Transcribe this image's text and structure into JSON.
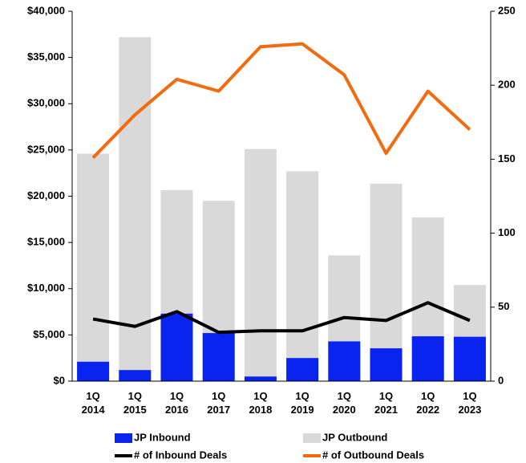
{
  "chart_data": {
    "type": "combo",
    "categories": [
      "1Q 2014",
      "1Q 2015",
      "1Q 2016",
      "1Q 2017",
      "1Q 2018",
      "1Q 2019",
      "1Q 2020",
      "1Q 2021",
      "1Q 2022",
      "1Q 2023"
    ],
    "series": [
      {
        "name": "JP Outbound",
        "type": "bar",
        "color": "#d9d9d9",
        "values": [
          24600,
          37200,
          20650,
          19500,
          25100,
          22700,
          13600,
          21350,
          17700,
          10400
        ]
      },
      {
        "name": "JP Inbound",
        "type": "bar",
        "color": "#0a24f0",
        "values": [
          2100,
          1200,
          7300,
          5200,
          500,
          2500,
          4300,
          3550,
          4850,
          4800
        ]
      },
      {
        "name": "# of Inbound Deals",
        "type": "line",
        "axis": "y2",
        "color": "#000000",
        "values": [
          42,
          37,
          47,
          33,
          34,
          34,
          43,
          41,
          53,
          41
        ]
      },
      {
        "name": "# of Outbound Deals",
        "type": "line",
        "axis": "y2",
        "color": "#f26b0f",
        "values": [
          151,
          180,
          204,
          196,
          226,
          228,
          207,
          154,
          196,
          170
        ]
      }
    ],
    "ylim": [
      0,
      40000
    ],
    "yticks": [
      {
        "value": 0,
        "label": "$0"
      },
      {
        "value": 5000,
        "label": "$5,000"
      },
      {
        "value": 10000,
        "label": "$10,000"
      },
      {
        "value": 15000,
        "label": "$15,000"
      },
      {
        "value": 20000,
        "label": "$20,000"
      },
      {
        "value": 25000,
        "label": "$25,000"
      },
      {
        "value": 30000,
        "label": "$30,000"
      },
      {
        "value": 35000,
        "label": "$35,000"
      },
      {
        "value": 40000,
        "label": "$40,000"
      }
    ],
    "y2lim": [
      0,
      250
    ],
    "y2ticks": [
      0,
      50,
      100,
      150,
      200,
      250
    ],
    "grid": false
  }
}
